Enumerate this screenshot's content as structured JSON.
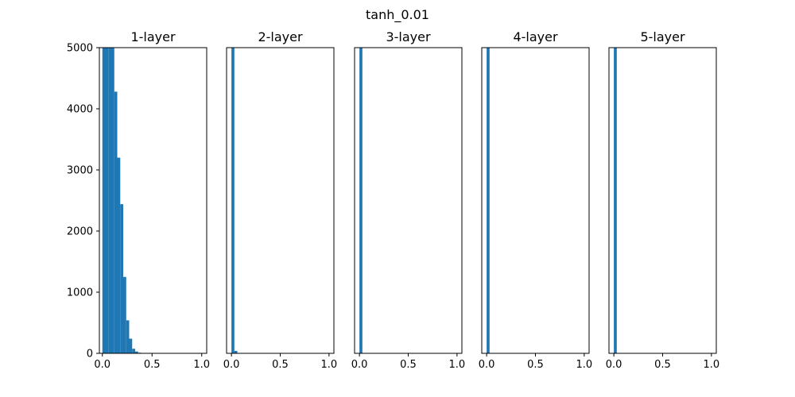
{
  "figure": {
    "suptitle": "tanh_0.01",
    "bar_color": "#1f77b4"
  },
  "chart_data": [
    {
      "type": "bar",
      "title": "1-layer",
      "xlim": [
        -0.03,
        1.05
      ],
      "ylim": [
        0,
        5000
      ],
      "xticks": [
        0.0,
        0.5,
        1.0
      ],
      "xtick_labels": [
        "0.0",
        "0.5",
        "1.0"
      ],
      "yticks": [
        0,
        1000,
        2000,
        3000,
        4000,
        5000
      ],
      "ytick_labels": [
        "0",
        "1000",
        "2000",
        "3000",
        "4000",
        "5000"
      ],
      "bin_width": 0.03,
      "bin_starts": [
        0.0,
        0.03,
        0.06,
        0.09,
        0.12,
        0.15,
        0.18,
        0.21,
        0.24,
        0.27,
        0.3,
        0.33,
        0.36
      ],
      "values": [
        5000,
        5000,
        5000,
        5000,
        4280,
        3200,
        2440,
        1250,
        540,
        240,
        75,
        30,
        10
      ]
    },
    {
      "type": "bar",
      "title": "2-layer",
      "xlim": [
        -0.05,
        1.05
      ],
      "ylim": [
        0,
        5000
      ],
      "xticks": [
        0.0,
        0.5,
        1.0
      ],
      "xtick_labels": [
        "0.0",
        "0.5",
        "1.0"
      ],
      "bin_width": 0.03,
      "bin_starts": [
        0.0,
        0.03
      ],
      "values": [
        5000,
        40
      ]
    },
    {
      "type": "bar",
      "title": "3-layer",
      "xlim": [
        -0.05,
        1.05
      ],
      "ylim": [
        0,
        5000
      ],
      "xticks": [
        0.0,
        0.5,
        1.0
      ],
      "xtick_labels": [
        "0.0",
        "0.5",
        "1.0"
      ],
      "bin_width": 0.03,
      "bin_starts": [
        0.0
      ],
      "values": [
        5000
      ]
    },
    {
      "type": "bar",
      "title": "4-layer",
      "xlim": [
        -0.05,
        1.05
      ],
      "ylim": [
        0,
        5000
      ],
      "xticks": [
        0.0,
        0.5,
        1.0
      ],
      "xtick_labels": [
        "0.0",
        "0.5",
        "1.0"
      ],
      "bin_width": 0.03,
      "bin_starts": [
        0.0
      ],
      "values": [
        5000
      ]
    },
    {
      "type": "bar",
      "title": "5-layer",
      "xlim": [
        -0.05,
        1.05
      ],
      "ylim": [
        0,
        5000
      ],
      "xticks": [
        0.0,
        0.5,
        1.0
      ],
      "xtick_labels": [
        "0.0",
        "0.5",
        "1.0"
      ],
      "bin_width": 0.03,
      "bin_starts": [
        0.0
      ],
      "values": [
        5000
      ]
    }
  ]
}
